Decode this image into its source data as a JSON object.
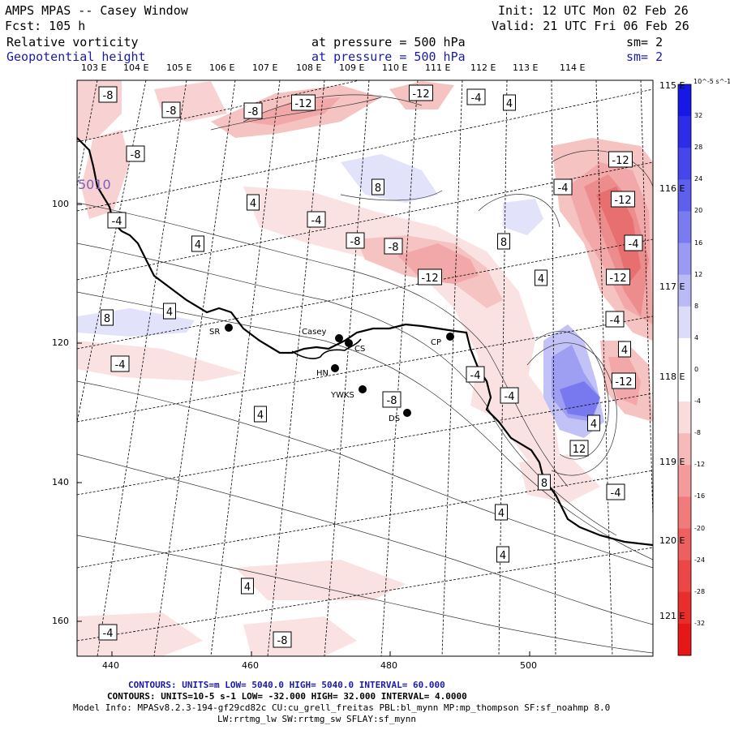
{
  "header": {
    "model": "AMPS MPAS -- Casey Window",
    "fcst": "Fcst:  105 h",
    "init": "Init: 12 UTC Mon 02 Feb 26",
    "valid": "Valid: 21 UTC Fri 06 Feb 26",
    "field1_name": "Relative vorticity",
    "field1_level": "at pressure =  500 hPa",
    "field1_sm": "sm= 2",
    "field2_name": "Geopotential height",
    "field2_level": "at pressure =  500 hPa",
    "field2_sm": "sm= 2"
  },
  "lon_labels_top": [
    "103 E",
    "104 E",
    "105 E",
    "106 E",
    "107 E",
    "108 E",
    "109 E",
    "110 E",
    "111 E",
    "112 E",
    "113 E",
    "114 E"
  ],
  "lon_labels_right": [
    "115 E",
    "116 E",
    "117 E",
    "118 E",
    "119 E",
    "120 E",
    "121 E"
  ],
  "x_ticks": [
    "440",
    "460",
    "480",
    "500"
  ],
  "y_ticks": [
    "100",
    "120",
    "140",
    "160"
  ],
  "stations": [
    {
      "name": "SR"
    },
    {
      "name": "Casey"
    },
    {
      "name": "CS"
    },
    {
      "name": "HN"
    },
    {
      "name": "YWKS"
    },
    {
      "name": "DS"
    },
    {
      "name": "CP"
    }
  ],
  "contour_labels": [
    "-8",
    "-8",
    "-8",
    "-12",
    "-12",
    "-4",
    "4",
    "-8",
    "4",
    "-4",
    "-4",
    "-8",
    "4",
    "8",
    "-12",
    "-8",
    "-12",
    "-12",
    "-4",
    "-12",
    "8",
    "4",
    "-4",
    "4",
    "8",
    "4",
    "-4",
    "-4",
    "-12",
    "-4",
    "-8",
    "4",
    "4",
    "12",
    "8",
    "-4",
    "4",
    "4",
    "4",
    "-4",
    "-4",
    "-8"
  ],
  "contour_label_extra": "5010",
  "colorbar": {
    "unit": "10^-5 s^-1",
    "ticks": [
      "32",
      "28",
      "24",
      "20",
      "16",
      "12",
      "8",
      "4",
      "0",
      "-4",
      "-8",
      "-12",
      "-16",
      "-20",
      "-24",
      "-28",
      "-32"
    ],
    "colors": [
      "#1717e8",
      "#2c2ce9",
      "#4646ec",
      "#5f5fee",
      "#7a7af1",
      "#9a9af4",
      "#babaf6",
      "#dcdcfa",
      "#ffffff",
      "#ffffff",
      "#fadcdc",
      "#f6baba",
      "#f49a9a",
      "#f17a7a",
      "#ee5f5f",
      "#ec4646",
      "#e92c2c",
      "#e81717"
    ]
  },
  "footer": {
    "line1": "CONTOURS:  UNITS=m  LOW=  5040.0       HIGH=  5040.0       INTERVAL=  60.000",
    "line2": "CONTOURS:  UNITS=10-5 s-1   LOW= -32.000       HIGH=  32.000       INTERVAL=  4.0000",
    "line3": "Model Info: MPASv8.2.3-194-gf29cd82c CU:cu_grell_freitas PBL:bl_mynn MP:mp_thompson SF:sf_noahmp 8.0",
    "line4": "LW:rrtmg_lw SW:rrtmg_sw SFLAY:sf_mynn"
  }
}
